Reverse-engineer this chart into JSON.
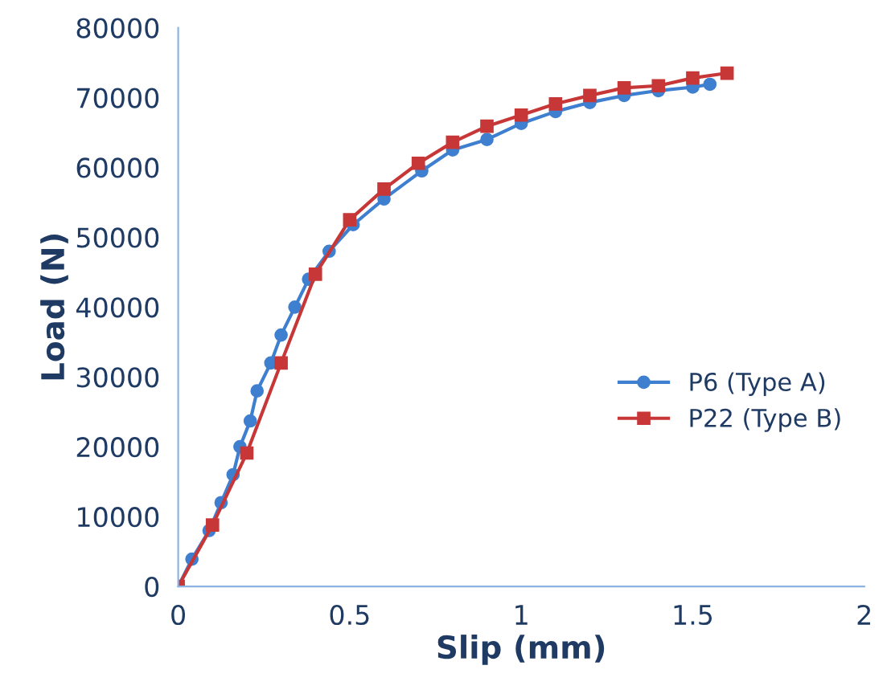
{
  "chart_data": {
    "type": "line",
    "xlabel": "Slip (mm)",
    "ylabel": "Load (N)",
    "xlim": [
      0,
      2
    ],
    "ylim": [
      0,
      80000
    ],
    "xticks": [
      0,
      0.5,
      1,
      1.5,
      2
    ],
    "yticks": [
      0,
      10000,
      20000,
      30000,
      40000,
      50000,
      60000,
      70000,
      80000
    ],
    "grid": false,
    "legend": "right",
    "line_style": "solid",
    "series": [
      {
        "name": "P6 (Type A)",
        "color": "#3f7fcf",
        "marker": "circle",
        "x": [
          0,
          0.04,
          0.09,
          0.125,
          0.16,
          0.18,
          0.21,
          0.23,
          0.27,
          0.3,
          0.34,
          0.38,
          0.44,
          0.51,
          0.6,
          0.71,
          0.8,
          0.9,
          1.0,
          1.1,
          1.2,
          1.3,
          1.4,
          1.5,
          1.55
        ],
        "values": [
          0,
          3900,
          8000,
          12000,
          16000,
          20000,
          23700,
          28000,
          32000,
          36000,
          40000,
          44000,
          48000,
          51800,
          55500,
          59500,
          62500,
          64000,
          66300,
          68000,
          69300,
          70300,
          71000,
          71500,
          71900
        ]
      },
      {
        "name": "P22 (Type B)",
        "color": "#c83737",
        "marker": "square",
        "x": [
          0,
          0.1,
          0.2,
          0.3,
          0.4,
          0.5,
          0.6,
          0.7,
          0.8,
          0.9,
          1.0,
          1.1,
          1.2,
          1.3,
          1.4,
          1.5,
          1.6
        ],
        "values": [
          0,
          8800,
          19100,
          32000,
          44700,
          52500,
          56900,
          60600,
          63600,
          65900,
          67500,
          69100,
          70300,
          71400,
          71700,
          72800,
          73500
        ]
      }
    ]
  }
}
